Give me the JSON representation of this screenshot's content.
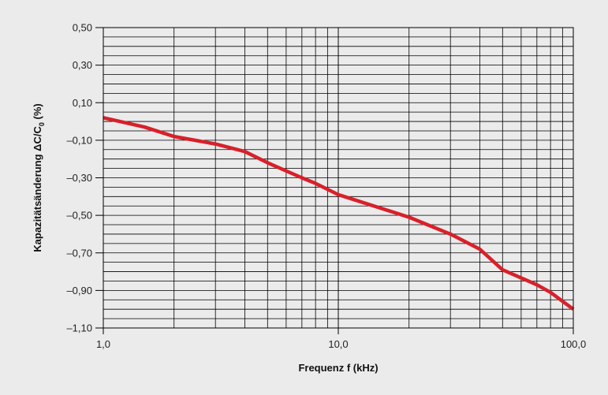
{
  "chart_data": {
    "type": "line",
    "xscale": "log",
    "xlim": [
      1,
      100
    ],
    "ylim": [
      -1.1,
      0.5
    ],
    "xlabel": "Frequenz f (kHz)",
    "ylabel_main": "Kapazitätsänderung ΔC/C",
    "ylabel_sub": "0",
    "ylabel_tail": " (%)",
    "x_tick_labels": [
      {
        "value": 1,
        "label": "1,0"
      },
      {
        "value": 10,
        "label": "10,0"
      },
      {
        "value": 100,
        "label": "100,0"
      }
    ],
    "y_tick_labels": [
      {
        "value": 0.5,
        "label": "0,50"
      },
      {
        "value": 0.3,
        "label": "0,30"
      },
      {
        "value": 0.1,
        "label": "0,10"
      },
      {
        "value": -0.1,
        "label": "–0,10"
      },
      {
        "value": -0.3,
        "label": "–0,30"
      },
      {
        "value": -0.5,
        "label": "–0,50"
      },
      {
        "value": -0.7,
        "label": "–0,70"
      },
      {
        "value": -0.9,
        "label": "–0,90"
      },
      {
        "value": -1.1,
        "label": "–1,10"
      }
    ],
    "grid": true,
    "y_minor_step": 0.05,
    "series": [
      {
        "color": "#d9202a",
        "x": [
          1,
          1.5,
          2,
          3,
          4,
          5,
          7,
          8,
          10,
          15,
          20,
          30,
          40,
          50,
          70,
          80,
          100
        ],
        "y": [
          0.02,
          -0.03,
          -0.08,
          -0.12,
          -0.16,
          -0.22,
          -0.3,
          -0.33,
          -0.39,
          -0.46,
          -0.51,
          -0.6,
          -0.68,
          -0.79,
          -0.87,
          -0.91,
          -1.0
        ]
      }
    ]
  }
}
